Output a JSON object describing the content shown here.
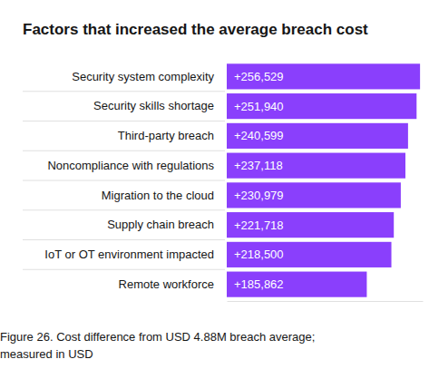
{
  "chart_data": {
    "type": "bar",
    "orientation": "horizontal",
    "title": "Factors that increased the average breach cost",
    "caption": "Figure 26. Cost difference from USD 4.88M breach average; measured in USD",
    "categories": [
      "Security system complexity",
      "Security skills shortage",
      "Third-party breach",
      "Noncompliance with regulations",
      "Migration to the cloud",
      "Supply chain breach",
      "IoT or OT environment impacted",
      "Remote workforce"
    ],
    "values": [
      256529,
      251940,
      240599,
      237118,
      230979,
      221718,
      218500,
      185862
    ],
    "value_labels": [
      "+256,529",
      "+251,940",
      "+240,599",
      "+237,118",
      "+230,979",
      "+221,718",
      "+218,500",
      "+185,862"
    ],
    "color": "#8a3ffc",
    "xlim": [
      0,
      260000
    ],
    "xticks": [],
    "data_labels": true,
    "tick_labels": "y",
    "grid": false
  }
}
